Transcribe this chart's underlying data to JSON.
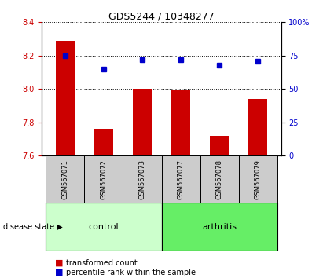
{
  "title": "GDS5244 / 10348277",
  "categories": [
    "GSM567071",
    "GSM567072",
    "GSM567073",
    "GSM567077",
    "GSM567078",
    "GSM567079"
  ],
  "red_values": [
    8.29,
    7.76,
    8.0,
    7.99,
    7.72,
    7.94
  ],
  "blue_values": [
    75,
    65,
    72,
    72,
    68,
    71
  ],
  "ylim_left": [
    7.6,
    8.4
  ],
  "ylim_right": [
    0,
    100
  ],
  "yticks_left": [
    7.6,
    7.8,
    8.0,
    8.2,
    8.4
  ],
  "yticks_right": [
    0,
    25,
    50,
    75,
    100
  ],
  "bar_color": "#cc0000",
  "dot_color": "#0000cc",
  "bar_bottom": 7.6,
  "control_count": 3,
  "arthritis_count": 3,
  "control_color": "#ccffcc",
  "arthritis_color": "#66ee66",
  "sample_box_color": "#cccccc",
  "label_color_red": "#cc0000",
  "label_color_blue": "#0000cc",
  "legend_red": "transformed count",
  "legend_blue": "percentile rank within the sample",
  "disease_state_label": "disease state",
  "control_label": "control",
  "arthritis_label": "arthritis"
}
